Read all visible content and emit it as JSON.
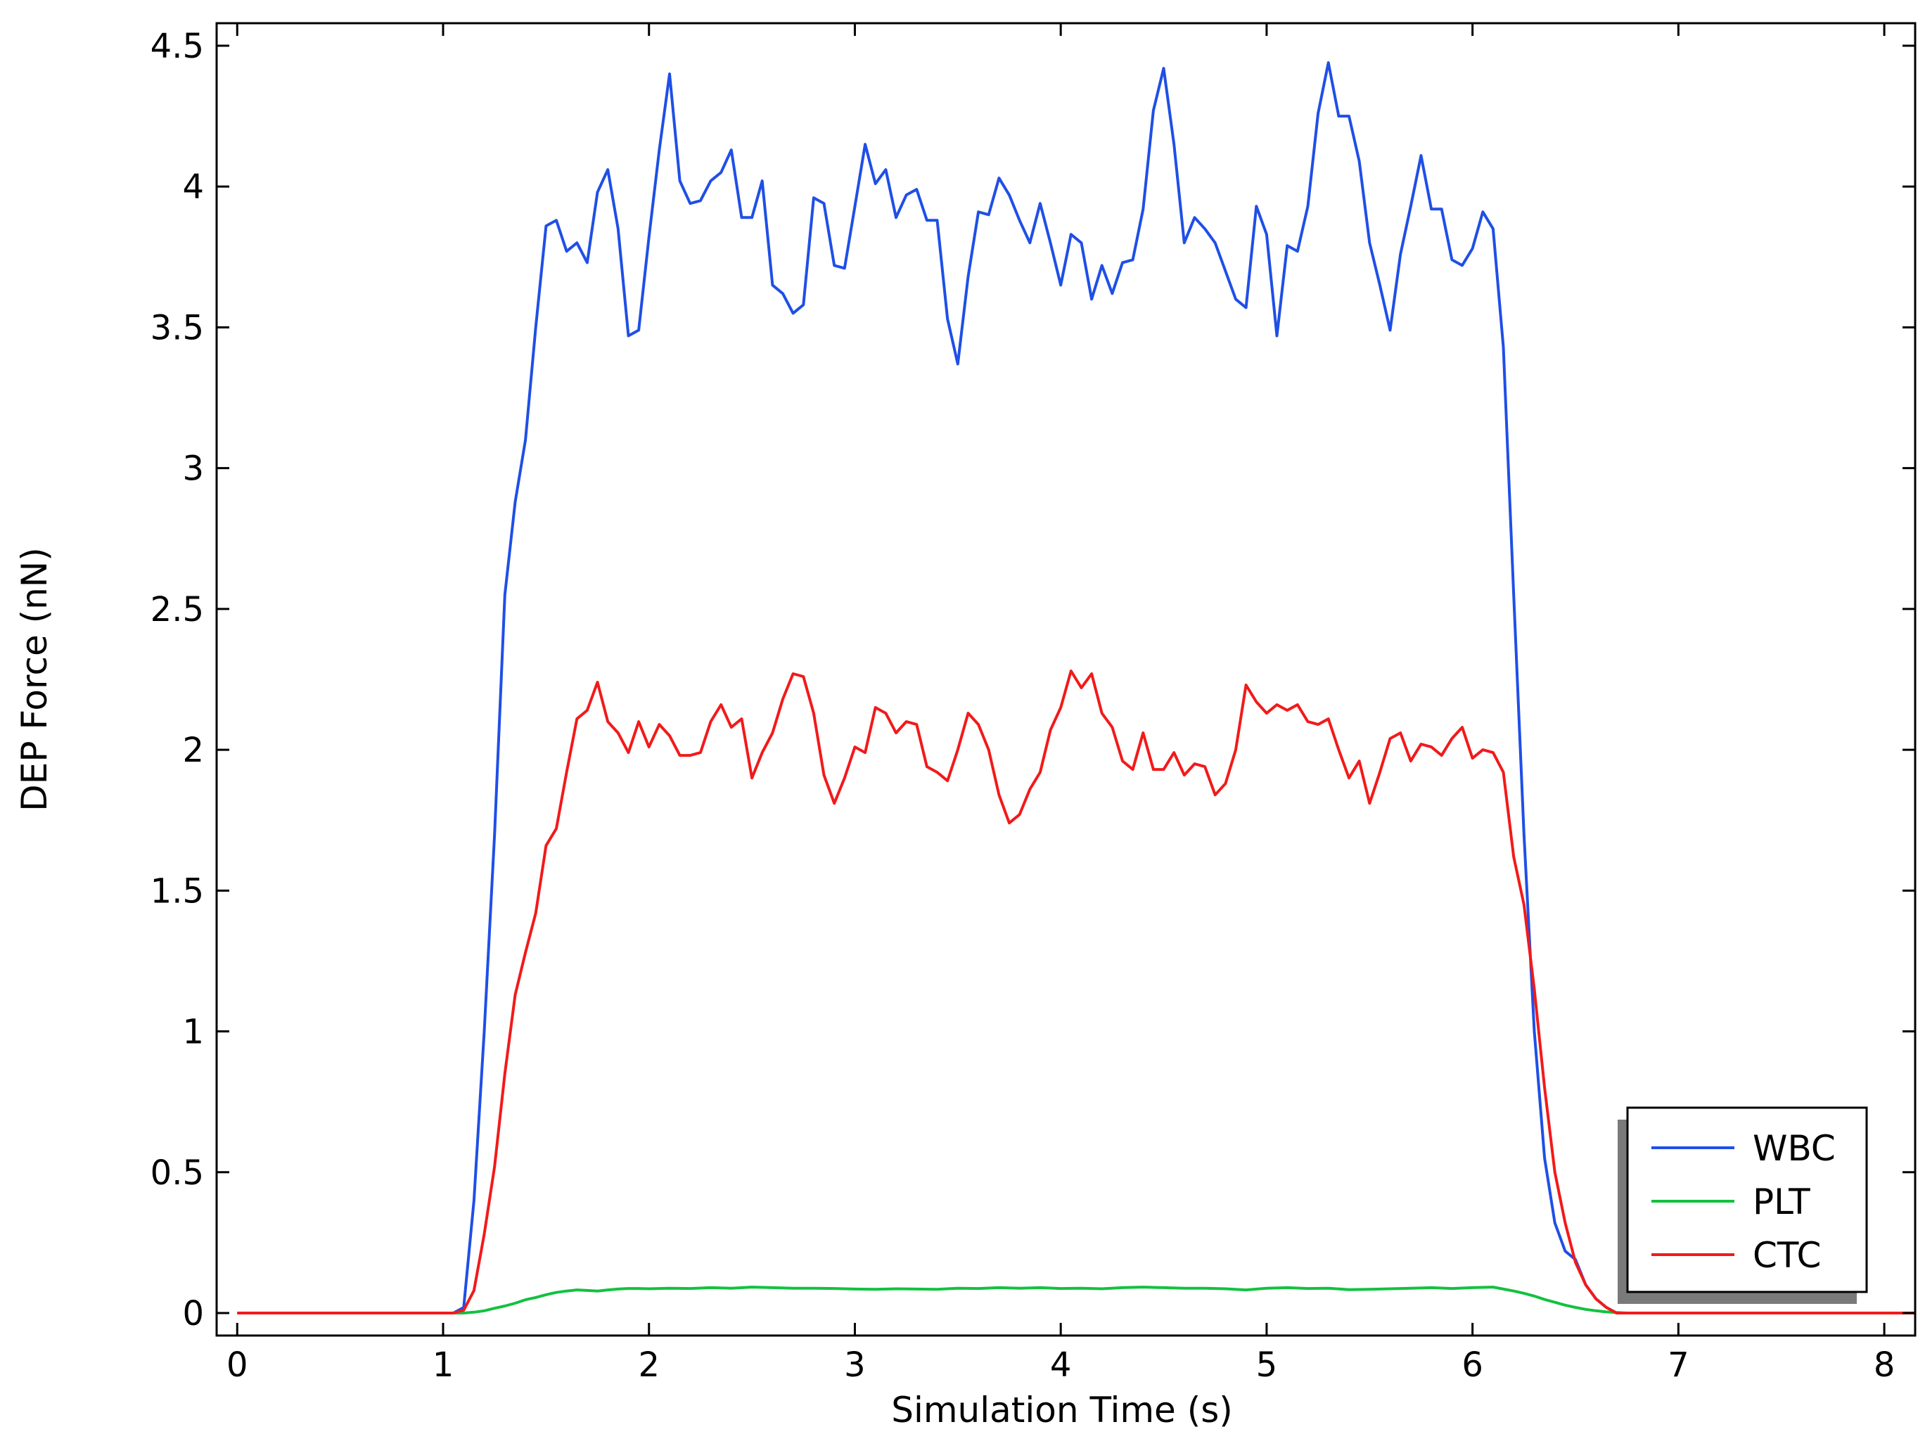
{
  "chart_data": {
    "type": "line",
    "xlabel": "Simulation Time (s)",
    "ylabel": "DEP Force (nN)",
    "xlim": [
      -0.1,
      8.15
    ],
    "ylim": [
      -0.08,
      4.58
    ],
    "xticks": [
      0,
      1,
      2,
      3,
      4,
      5,
      6,
      7,
      8
    ],
    "xtick_labels": [
      "0",
      "1",
      "2",
      "3",
      "4",
      "5",
      "6",
      "7",
      "8"
    ],
    "yticks": [
      0,
      0.5,
      1,
      1.5,
      2,
      2.5,
      3,
      3.5,
      4,
      4.5
    ],
    "ytick_labels": [
      "0",
      "0.5",
      "1",
      "1.5",
      "2",
      "2.5",
      "3",
      "3.5",
      "4",
      "4.5"
    ],
    "grid": false,
    "legend_position": "bottom-right",
    "series": [
      {
        "name": "WBC",
        "color": "#1f4fe6",
        "x": [
          0,
          1,
          1.05,
          1.1,
          1.15,
          1.2,
          1.25,
          1.3,
          1.35,
          1.4,
          1.45,
          1.5,
          1.55,
          1.6,
          1.65,
          1.7,
          1.75,
          1.8,
          1.85,
          1.9,
          1.95,
          2,
          2.05,
          2.1,
          2.15,
          2.2,
          2.25,
          2.3,
          2.35,
          2.4,
          2.45,
          2.5,
          2.55,
          2.6,
          2.65,
          2.7,
          2.75,
          2.8,
          2.85,
          2.9,
          2.95,
          3,
          3.05,
          3.1,
          3.15,
          3.2,
          3.25,
          3.3,
          3.35,
          3.4,
          3.45,
          3.5,
          3.55,
          3.6,
          3.65,
          3.7,
          3.75,
          3.8,
          3.85,
          3.9,
          3.95,
          4,
          4.05,
          4.1,
          4.15,
          4.2,
          4.25,
          4.3,
          4.35,
          4.4,
          4.45,
          4.5,
          4.55,
          4.6,
          4.65,
          4.7,
          4.75,
          4.8,
          4.85,
          4.9,
          4.95,
          5,
          5.05,
          5.1,
          5.15,
          5.2,
          5.25,
          5.3,
          5.35,
          5.4,
          5.45,
          5.5,
          5.55,
          5.6,
          5.65,
          5.7,
          5.75,
          5.8,
          5.85,
          5.9,
          5.95,
          6,
          6.05,
          6.1,
          6.15,
          6.2,
          6.25,
          6.3,
          6.35,
          6.4,
          6.45,
          6.5,
          6.55,
          6.6,
          6.65,
          6.7,
          6.75,
          8.15
        ],
        "y": [
          0,
          0,
          0,
          0.02,
          0.4,
          1.0,
          1.7,
          2.55,
          2.88,
          3.1,
          3.5,
          3.86,
          3.88,
          3.77,
          3.8,
          3.73,
          3.98,
          4.06,
          3.85,
          3.47,
          3.49,
          3.82,
          4.13,
          4.4,
          4.02,
          3.94,
          3.95,
          4.02,
          4.05,
          4.13,
          3.89,
          3.89,
          4.02,
          3.65,
          3.62,
          3.55,
          3.58,
          3.96,
          3.94,
          3.72,
          3.71,
          3.93,
          4.15,
          4.01,
          4.06,
          3.89,
          3.97,
          3.99,
          3.88,
          3.88,
          3.53,
          3.37,
          3.68,
          3.91,
          3.9,
          4.03,
          3.97,
          3.88,
          3.8,
          3.94,
          3.8,
          3.65,
          3.83,
          3.8,
          3.6,
          3.72,
          3.62,
          3.73,
          3.74,
          3.92,
          4.27,
          4.42,
          4.15,
          3.8,
          3.89,
          3.85,
          3.8,
          3.7,
          3.6,
          3.57,
          3.93,
          3.83,
          3.47,
          3.79,
          3.77,
          3.93,
          4.26,
          4.44,
          4.25,
          4.25,
          4.09,
          3.8,
          3.65,
          3.49,
          3.76,
          3.93,
          4.11,
          3.92,
          3.92,
          3.74,
          3.72,
          3.78,
          3.91,
          3.85,
          3.43,
          2.55,
          1.7,
          1.0,
          0.55,
          0.32,
          0.22,
          0.19,
          0.1,
          0.05,
          0.02,
          0,
          0,
          0
        ]
      },
      {
        "name": "PLT",
        "color": "#13c140",
        "x": [
          0,
          1.1,
          1.15,
          1.2,
          1.25,
          1.3,
          1.35,
          1.4,
          1.45,
          1.5,
          1.55,
          1.6,
          1.65,
          1.7,
          1.75,
          1.8,
          1.85,
          1.9,
          1.95,
          2,
          2.1,
          2.2,
          2.3,
          2.4,
          2.5,
          2.6,
          2.7,
          2.8,
          2.9,
          3,
          3.1,
          3.2,
          3.3,
          3.4,
          3.5,
          3.6,
          3.7,
          3.8,
          3.9,
          4,
          4.1,
          4.2,
          4.3,
          4.4,
          4.5,
          4.6,
          4.7,
          4.8,
          4.9,
          5,
          5.1,
          5.2,
          5.3,
          5.4,
          5.5,
          5.6,
          5.7,
          5.8,
          5.9,
          6,
          6.1,
          6.15,
          6.2,
          6.25,
          6.3,
          6.35,
          6.4,
          6.45,
          6.5,
          6.55,
          6.6,
          6.65,
          6.7,
          6.75,
          8.15
        ],
        "y": [
          0,
          0,
          0.003,
          0.008,
          0.017,
          0.025,
          0.035,
          0.047,
          0.055,
          0.065,
          0.073,
          0.078,
          0.082,
          0.08,
          0.078,
          0.082,
          0.085,
          0.087,
          0.087,
          0.086,
          0.088,
          0.087,
          0.09,
          0.088,
          0.092,
          0.09,
          0.088,
          0.088,
          0.087,
          0.085,
          0.084,
          0.086,
          0.085,
          0.084,
          0.088,
          0.087,
          0.09,
          0.088,
          0.09,
          0.087,
          0.088,
          0.086,
          0.09,
          0.092,
          0.09,
          0.088,
          0.088,
          0.086,
          0.082,
          0.088,
          0.09,
          0.087,
          0.088,
          0.083,
          0.084,
          0.086,
          0.088,
          0.09,
          0.087,
          0.09,
          0.092,
          0.085,
          0.078,
          0.07,
          0.06,
          0.048,
          0.038,
          0.028,
          0.02,
          0.013,
          0.008,
          0.004,
          0.002,
          0,
          0
        ]
      },
      {
        "name": "CTC",
        "color": "#f21a1a",
        "x": [
          0,
          1.05,
          1.1,
          1.15,
          1.2,
          1.25,
          1.3,
          1.35,
          1.4,
          1.45,
          1.5,
          1.55,
          1.6,
          1.65,
          1.7,
          1.75,
          1.8,
          1.85,
          1.9,
          1.95,
          2,
          2.05,
          2.1,
          2.15,
          2.2,
          2.25,
          2.3,
          2.35,
          2.4,
          2.45,
          2.5,
          2.55,
          2.6,
          2.65,
          2.7,
          2.75,
          2.8,
          2.85,
          2.9,
          2.95,
          3,
          3.05,
          3.1,
          3.15,
          3.2,
          3.25,
          3.3,
          3.35,
          3.4,
          3.45,
          3.5,
          3.55,
          3.6,
          3.65,
          3.7,
          3.75,
          3.8,
          3.85,
          3.9,
          3.95,
          4,
          4.05,
          4.1,
          4.15,
          4.2,
          4.25,
          4.3,
          4.35,
          4.4,
          4.45,
          4.5,
          4.55,
          4.6,
          4.65,
          4.7,
          4.75,
          4.8,
          4.85,
          4.9,
          4.95,
          5,
          5.05,
          5.1,
          5.15,
          5.2,
          5.25,
          5.3,
          5.35,
          5.4,
          5.45,
          5.5,
          5.55,
          5.6,
          5.65,
          5.7,
          5.75,
          5.8,
          5.85,
          5.9,
          5.95,
          6,
          6.05,
          6.1,
          6.15,
          6.2,
          6.25,
          6.3,
          6.35,
          6.4,
          6.45,
          6.5,
          6.55,
          6.6,
          6.65,
          6.7,
          6.75,
          8.15
        ],
        "y": [
          0,
          0,
          0.01,
          0.08,
          0.28,
          0.52,
          0.85,
          1.13,
          1.28,
          1.42,
          1.66,
          1.72,
          1.92,
          2.11,
          2.14,
          2.24,
          2.1,
          2.06,
          1.99,
          2.1,
          2.01,
          2.09,
          2.05,
          1.98,
          1.98,
          1.99,
          2.1,
          2.16,
          2.08,
          2.11,
          1.9,
          1.99,
          2.06,
          2.18,
          2.27,
          2.26,
          2.13,
          1.91,
          1.81,
          1.9,
          2.01,
          1.99,
          2.15,
          2.13,
          2.06,
          2.1,
          2.09,
          1.94,
          1.92,
          1.89,
          2.0,
          2.13,
          2.09,
          2.0,
          1.84,
          1.74,
          1.77,
          1.86,
          1.92,
          2.07,
          2.15,
          2.28,
          2.22,
          2.27,
          2.13,
          2.08,
          1.96,
          1.93,
          2.06,
          1.93,
          1.93,
          1.99,
          1.91,
          1.95,
          1.94,
          1.84,
          1.88,
          2.0,
          2.23,
          2.17,
          2.13,
          2.16,
          2.14,
          2.16,
          2.1,
          2.09,
          2.11,
          2.0,
          1.9,
          1.96,
          1.81,
          1.92,
          2.04,
          2.06,
          1.96,
          2.02,
          2.01,
          1.98,
          2.04,
          2.08,
          1.97,
          2.0,
          1.99,
          1.92,
          1.62,
          1.45,
          1.15,
          0.8,
          0.5,
          0.32,
          0.18,
          0.1,
          0.05,
          0.02,
          0,
          0,
          0
        ]
      }
    ]
  }
}
